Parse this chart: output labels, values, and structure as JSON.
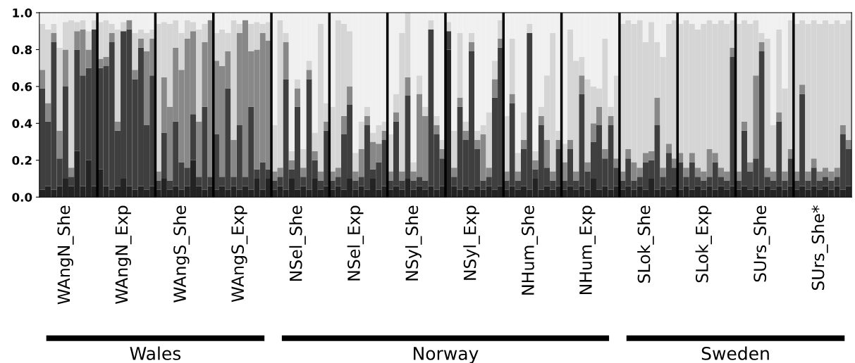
{
  "chart_data": {
    "type": "bar",
    "stacked": true,
    "grid": false,
    "legend": false,
    "categories": [
      null,
      null,
      null,
      null,
      "WAngN_She",
      null,
      null,
      null,
      null,
      null,
      null,
      null,
      null,
      null,
      "WAngN_Exp",
      null,
      null,
      null,
      null,
      null,
      null,
      null,
      null,
      null,
      "WAngS_She",
      null,
      null,
      null,
      null,
      null,
      null,
      null,
      null,
      null,
      "WAngS_Exp",
      null,
      null,
      null,
      null,
      null,
      null,
      null,
      null,
      null,
      "NSel_She",
      null,
      null,
      null,
      null,
      null,
      null,
      null,
      null,
      null,
      "NSel_Exp",
      null,
      null,
      null,
      null,
      null,
      null,
      null,
      null,
      null,
      "NSyl_She",
      null,
      null,
      null,
      null,
      null,
      null,
      null,
      null,
      null,
      "NSyl_Exp",
      null,
      null,
      null,
      null,
      null,
      null,
      null,
      null,
      null,
      "NHum_She",
      null,
      null,
      null,
      null,
      null,
      null,
      null,
      null,
      null,
      "NHum_Exp",
      null,
      null,
      null,
      null,
      null,
      null,
      null,
      null,
      null,
      "SLok_She",
      null,
      null,
      null,
      null,
      null,
      null,
      null,
      null,
      null,
      "SLok_Exp",
      null,
      null,
      null,
      null,
      null,
      null,
      null,
      null,
      null,
      "SUrs_She",
      null,
      null,
      null,
      null,
      null,
      null,
      null,
      null,
      null,
      "SUrs_She*",
      null,
      null,
      null,
      null,
      null
    ],
    "ylim": [
      0,
      1
    ],
    "yticks": [
      {
        "value": 0,
        "label": "0.0"
      },
      {
        "value": 0.2,
        "label": "0.2"
      },
      {
        "value": 0.4,
        "label": "0.4"
      },
      {
        "value": 0.6,
        "label": "0.6"
      },
      {
        "value": 0.8,
        "label": "0.8"
      },
      {
        "value": 1,
        "label": "1.0"
      }
    ],
    "series": [
      {
        "color": "#232323",
        "values": [
          0.04,
          0.06,
          0.04,
          0.06,
          0.1,
          0.06,
          0.25,
          0.06,
          0.2,
          0.06,
          0.15,
          0.06,
          0.04,
          0.06,
          0.1,
          0.06,
          0.04,
          0.06,
          0.04,
          0.06,
          0.04,
          0.1,
          0.04,
          0.06,
          0.04,
          0.06,
          0.2,
          0.06,
          0.04,
          0.06,
          0.04,
          0.06,
          0.04,
          0.06,
          0.04,
          0.06,
          0.04,
          0.1,
          0.04,
          0.1,
          0.04,
          0.06,
          0.04,
          0.1,
          0.04,
          0.06,
          0.04,
          0.1,
          0.04,
          0.06,
          0.04,
          0.06,
          0.04,
          0.1,
          0.04,
          0.06,
          0.04,
          0.1,
          0.04,
          0.06,
          0.04,
          0.06,
          0.04,
          0.1,
          0.04,
          0.06,
          0.04,
          0.06,
          0.04,
          0.06,
          0.8,
          0.06,
          0.04,
          0.06,
          0.04,
          0.06,
          0.04,
          0.06,
          0.04,
          0.06,
          0.04,
          0.06,
          0.04,
          0.06,
          0.04,
          0.1,
          0.04,
          0.06,
          0.04,
          0.06,
          0.04,
          0.06,
          0.04,
          0.06,
          0.04,
          0.1,
          0.04,
          0.06,
          0.04,
          0.06,
          0.04,
          0.06,
          0.04,
          0.06,
          0.04,
          0.1,
          0.04,
          0.06,
          0.04,
          0.06,
          0.04,
          0.06,
          0.04,
          0.06,
          0.04,
          0.06,
          0.04,
          0.06,
          0.04,
          0.06,
          0.04,
          0.06,
          0.04,
          0.06,
          0.04,
          0.06,
          0.04,
          0.06,
          0.04,
          0.06,
          0.04,
          0.06,
          0.04,
          0.06,
          0.04,
          0.06,
          0.04,
          0.06,
          0.04,
          0.06
        ]
      },
      {
        "color": "#3f3f3f",
        "values": [
          0.55,
          0.35,
          0.8,
          0.15,
          0.5,
          0.05,
          0.55,
          0.6,
          0.5,
          0.85,
          0.55,
          0.65,
          0.8,
          0.3,
          0.8,
          0.85,
          0.6,
          0.75,
          0.35,
          0.6,
          0.05,
          0.25,
          0.05,
          0.35,
          0.15,
          0.1,
          0.25,
          0.05,
          0.45,
          0.05,
          0.3,
          0.05,
          0.55,
          0.05,
          0.35,
          0.05,
          0.45,
          0.05,
          0.15,
          0.05,
          0.05,
          0.05,
          0.6,
          0.05,
          0.45,
          0.05,
          0.6,
          0.1,
          0.05,
          0.3,
          0.05,
          0.05,
          0.3,
          0.4,
          0.05,
          0.05,
          0.35,
          0.05,
          0.15,
          0.25,
          0.05,
          0.35,
          0.05,
          0.45,
          0.05,
          0.05,
          0.05,
          0.85,
          0.3,
          0.15,
          0.1,
          0.05,
          0.45,
          0.25,
          0.75,
          0.2,
          0.05,
          0.05,
          0.5,
          0.75,
          0.05,
          0.45,
          0.05,
          0.2,
          0.85,
          0.05,
          0.35,
          0.1,
          0.05,
          0.2,
          0.05,
          0.2,
          0.05,
          0.5,
          0.1,
          0.2,
          0.35,
          0.15,
          0.35,
          0.1,
          0.05,
          0.15,
          0.05,
          0.05,
          0.15,
          0.1,
          0.35,
          0.05,
          0.2,
          0.1,
          0.15,
          0.05,
          0.15,
          0.05,
          0.05,
          0.05,
          0.15,
          0.05,
          0.05,
          0.7,
          0.05,
          0.3,
          0.1,
          0.15,
          0.75,
          0.05,
          0.05,
          0.35,
          0.05,
          0.15,
          0.05,
          0.5,
          0.05,
          0.1,
          0.05,
          0.05,
          0.05,
          0.05,
          0.3,
          0.2
        ]
      },
      {
        "color": "#888888",
        "values": [
          0.1,
          0.1,
          0.05,
          0.15,
          0.2,
          0.05,
          0.1,
          0.25,
          0.1,
          0,
          0.05,
          0.05,
          0.05,
          0.05,
          0,
          0.05,
          0.05,
          0.05,
          0.4,
          0.2,
          0.05,
          0.3,
          0.4,
          0.4,
          0.5,
          0.7,
          0.45,
          0.3,
          0.35,
          0.85,
          0.4,
          0.6,
          0.2,
          0.2,
          0.5,
          0.85,
          0.3,
          0.65,
          0.7,
          0.7,
          0.05,
          0.05,
          0.2,
          0.05,
          0.1,
          0.05,
          0.05,
          0.05,
          0.05,
          0.05,
          0.05,
          0.05,
          0.1,
          0.1,
          0.05,
          0.15,
          0.05,
          0.15,
          0.1,
          0.05,
          0.05,
          0.05,
          0.05,
          0.1,
          0.05,
          0.45,
          0.35,
          0,
          0.05,
          0.05,
          0,
          0.05,
          0.05,
          0.05,
          0.05,
          0.05,
          0.25,
          0.05,
          0.1,
          0.05,
          0.05,
          0.05,
          0.05,
          0.05,
          0,
          0.05,
          0.05,
          0.15,
          0.05,
          0.05,
          0.1,
          0.05,
          0.05,
          0.1,
          0.05,
          0.1,
          0.1,
          0.05,
          0.05,
          0.05,
          0.05,
          0.05,
          0.1,
          0.05,
          0.05,
          0.05,
          0.15,
          0.05,
          0.05,
          0.05,
          0.05,
          0.05,
          0.05,
          0.05,
          0.05,
          0.15,
          0.05,
          0.05,
          0.05,
          0.05,
          0.05,
          0.05,
          0.05,
          0.45,
          0.05,
          0.05,
          0.05,
          0.05,
          0.05,
          0.05,
          0.05,
          0.05,
          0.05,
          0.05,
          0.05,
          0.05,
          0.05,
          0.05,
          0.05,
          0.05
        ]
      },
      {
        "color": "#d5d5d5",
        "values": [
          0.25,
          0.4,
          0.05,
          0.45,
          0.15,
          0.8,
          0.05,
          0.05,
          0.1,
          0.05,
          0.2,
          0.2,
          0.05,
          0.5,
          0.05,
          0,
          0.2,
          0.05,
          0.1,
          0.05,
          0.8,
          0.3,
          0.45,
          0.15,
          0.2,
          0.1,
          0.05,
          0.5,
          0.1,
          0,
          0.15,
          0.2,
          0.1,
          0.65,
          0.05,
          0,
          0.15,
          0.15,
          0.05,
          0.1,
          0.25,
          0.8,
          0.05,
          0.05,
          0.05,
          0.1,
          0.05,
          0.1,
          0.8,
          0.1,
          0.35,
          0.8,
          0.5,
          0.3,
          0.1,
          0.15,
          0.05,
          0.05,
          0.1,
          0.05,
          0.2,
          0.1,
          0.75,
          0.35,
          0.05,
          0.1,
          0.05,
          0.05,
          0.05,
          0.05,
          0.05,
          0.2,
          0.35,
          0.05,
          0.05,
          0.05,
          0.05,
          0.3,
          0.1,
          0.1,
          0.3,
          0.3,
          0.1,
          0.15,
          0.05,
          0.05,
          0.05,
          0.35,
          0.75,
          0.05,
          0.1,
          0.6,
          0.6,
          0.1,
          0.45,
          0.2,
          0.1,
          0.6,
          0.05,
          0.45,
          0.8,
          0.7,
          0.75,
          0.8,
          0.6,
          0.7,
          0.3,
          0.6,
          0.65,
          0.75,
          0.7,
          0.8,
          0.7,
          0.75,
          0.8,
          0.7,
          0.7,
          0.8,
          0.8,
          0.15,
          0.8,
          0.55,
          0.75,
          0.3,
          0.05,
          0.7,
          0.25,
          0.45,
          0.45,
          0.7,
          0.8,
          0.35,
          0.8,
          0.75,
          0.8,
          0.8,
          0.8,
          0.8,
          0.55,
          0.65
        ]
      },
      {
        "color": "#f0f0f0",
        "values": [
          0.06,
          0.09,
          0.06,
          0.19,
          0.05,
          0.04,
          0.05,
          0.04,
          0.1,
          0.04,
          0.05,
          0.04,
          0.06,
          0.09,
          0.05,
          0.04,
          0.11,
          0.09,
          0.11,
          0.09,
          0.06,
          0.05,
          0.06,
          0.04,
          0.11,
          0.04,
          0.05,
          0.09,
          0.06,
          0.04,
          0.11,
          0.09,
          0.11,
          0.04,
          0.06,
          0.04,
          0.06,
          0.05,
          0.06,
          0.05,
          0.61,
          0.04,
          0.11,
          0.75,
          0.36,
          0.74,
          0.26,
          0.65,
          0.06,
          0.49,
          0.51,
          0.04,
          0.06,
          0.1,
          0.76,
          0.59,
          0.51,
          0.65,
          0.61,
          0.59,
          0.66,
          0.44,
          0.11,
          0,
          0.81,
          0.34,
          0.51,
          0.04,
          0.56,
          0.69,
          0.05,
          0.64,
          0.11,
          0.59,
          0.11,
          0.64,
          0.61,
          0.54,
          0.26,
          0.04,
          0.56,
          0.14,
          0.76,
          0.54,
          0.06,
          0.75,
          0.51,
          0.34,
          0.11,
          0.64,
          0.71,
          0.09,
          0.26,
          0.24,
          0.36,
          0.4,
          0.41,
          0.14,
          0.51,
          0.34,
          0.06,
          0.04,
          0.06,
          0.04,
          0.16,
          0.05,
          0.16,
          0.24,
          0.06,
          0.04,
          0.06,
          0.04,
          0.06,
          0.09,
          0.06,
          0.04,
          0.06,
          0.04,
          0.06,
          0.04,
          0.06,
          0.04,
          0.06,
          0.04,
          0.11,
          0.14,
          0.61,
          0.09,
          0.41,
          0.04,
          0.06,
          0.04,
          0.06,
          0.04,
          0.06,
          0.04,
          0.06,
          0.04,
          0.06,
          0.04
        ]
      }
    ],
    "annotations": [
      "Wales",
      "Norway",
      "Sweden"
    ]
  }
}
